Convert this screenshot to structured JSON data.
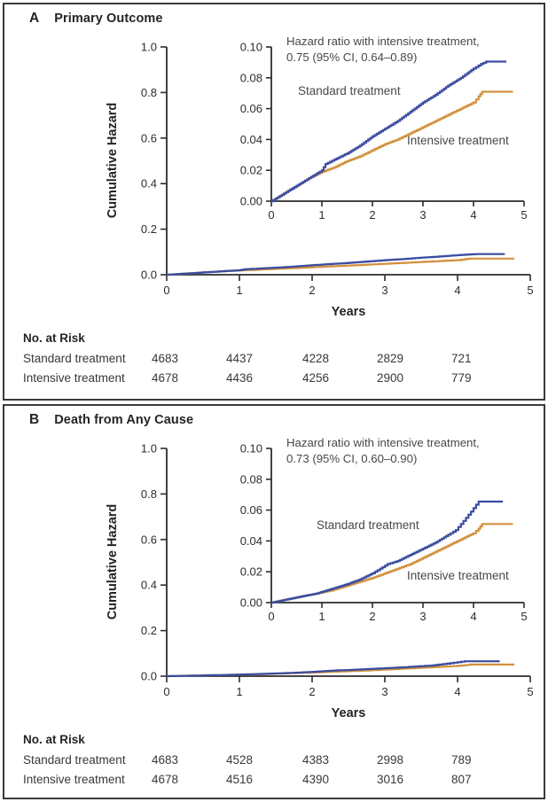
{
  "figure": {
    "panels": [
      {
        "letter": "A",
        "title": "Primary Outcome",
        "risk_table": {
          "header": "No. at Risk",
          "rows": [
            {
              "label": "Standard treatment",
              "values": [
                "4683",
                "4437",
                "4228",
                "2829",
                "721"
              ]
            },
            {
              "label": "Intensive treatment",
              "values": [
                "4678",
                "4436",
                "4256",
                "2900",
                "779"
              ]
            }
          ]
        }
      },
      {
        "letter": "B",
        "title": "Death from Any Cause",
        "risk_table": {
          "header": "No. at Risk",
          "rows": [
            {
              "label": "Standard treatment",
              "values": [
                "4683",
                "4528",
                "4383",
                "2998",
                "789"
              ]
            },
            {
              "label": "Intensive treatment",
              "values": [
                "4678",
                "4516",
                "4390",
                "3016",
                "807"
              ]
            }
          ]
        }
      }
    ]
  },
  "colors": {
    "standard_treatment": "#3A4C9F",
    "intensive_treatment": "#D2913E",
    "axis": "#2d2d2f",
    "tick_text": "#2d2d2f"
  },
  "chart_data": [
    {
      "type": "line",
      "title": "Primary Outcome",
      "xlabel": "Years",
      "ylabel": "Cumulative Hazard",
      "xlim": [
        0,
        5
      ],
      "xticks": [
        "0",
        "1",
        "2",
        "3",
        "4",
        "5"
      ],
      "main_ylim": [
        0,
        1.0
      ],
      "main_yticks": [
        "0.0",
        "0.2",
        "0.4",
        "0.6",
        "0.8",
        "1.0"
      ],
      "inset_ylim": [
        0,
        0.1
      ],
      "inset_yticks": [
        "0.00",
        "0.02",
        "0.04",
        "0.06",
        "0.08",
        "0.10"
      ],
      "grid": false,
      "legend": "inline-labels",
      "annotation": "Hazard ratio with intensive treatment, 0.75 (95% CI, 0.64–0.89)",
      "annotation_lines": [
        "Hazard ratio with intensive treatment,",
        "0.75 (95% CI, 0.64–0.89)"
      ],
      "series": [
        {
          "name": "Standard treatment",
          "color": "#3A4C9F",
          "points": [
            [
              0,
              0
            ],
            [
              0.25,
              0.005
            ],
            [
              0.5,
              0.01
            ],
            [
              0.75,
              0.015
            ],
            [
              1.0,
              0.02
            ],
            [
              1.07,
              0.024
            ],
            [
              1.25,
              0.027
            ],
            [
              1.5,
              0.031
            ],
            [
              1.75,
              0.036
            ],
            [
              2.0,
              0.042
            ],
            [
              2.25,
              0.047
            ],
            [
              2.5,
              0.052
            ],
            [
              2.75,
              0.058
            ],
            [
              3.0,
              0.064
            ],
            [
              3.25,
              0.069
            ],
            [
              3.5,
              0.075
            ],
            [
              3.75,
              0.08
            ],
            [
              4.0,
              0.086
            ],
            [
              4.15,
              0.089
            ],
            [
              4.25,
              0.0905
            ],
            [
              4.65,
              0.0905
            ]
          ]
        },
        {
          "name": "Intensive treatment",
          "color": "#D2913E",
          "points": [
            [
              0,
              0
            ],
            [
              0.25,
              0.005
            ],
            [
              0.5,
              0.01
            ],
            [
              0.75,
              0.015
            ],
            [
              1.0,
              0.019
            ],
            [
              1.25,
              0.022
            ],
            [
              1.5,
              0.026
            ],
            [
              1.75,
              0.029
            ],
            [
              2.0,
              0.033
            ],
            [
              2.25,
              0.037
            ],
            [
              2.5,
              0.04
            ],
            [
              2.75,
              0.044
            ],
            [
              3.0,
              0.048
            ],
            [
              3.25,
              0.052
            ],
            [
              3.5,
              0.056
            ],
            [
              3.75,
              0.06
            ],
            [
              4.0,
              0.064
            ],
            [
              4.1,
              0.068
            ],
            [
              4.17,
              0.071
            ],
            [
              4.78,
              0.071
            ]
          ]
        }
      ]
    },
    {
      "type": "line",
      "title": "Death from Any Cause",
      "xlabel": "Years",
      "ylabel": "Cumulative Hazard",
      "xlim": [
        0,
        5
      ],
      "xticks": [
        "0",
        "1",
        "2",
        "3",
        "4",
        "5"
      ],
      "main_ylim": [
        0,
        1.0
      ],
      "main_yticks": [
        "0.0",
        "0.2",
        "0.4",
        "0.6",
        "0.8",
        "1.0"
      ],
      "inset_ylim": [
        0,
        0.1
      ],
      "inset_yticks": [
        "0.00",
        "0.02",
        "0.04",
        "0.06",
        "0.08",
        "0.10"
      ],
      "grid": false,
      "legend": "inline-labels",
      "annotation": "Hazard ratio with intensive treatment, 0.73 (95% CI, 0.60–0.90)",
      "annotation_lines": [
        "Hazard ratio with intensive treatment,",
        "0.73 (95% CI, 0.60–0.90)"
      ],
      "series": [
        {
          "name": "Standard treatment",
          "color": "#3A4C9F",
          "points": [
            [
              0,
              0
            ],
            [
              0.3,
              0.002
            ],
            [
              0.6,
              0.004
            ],
            [
              0.9,
              0.006
            ],
            [
              1.2,
              0.009
            ],
            [
              1.5,
              0.012
            ],
            [
              1.75,
              0.015
            ],
            [
              2.0,
              0.019
            ],
            [
              2.15,
              0.022
            ],
            [
              2.3,
              0.025
            ],
            [
              2.5,
              0.027
            ],
            [
              2.75,
              0.031
            ],
            [
              3.0,
              0.035
            ],
            [
              3.25,
              0.039
            ],
            [
              3.5,
              0.044
            ],
            [
              3.65,
              0.047
            ],
            [
              3.8,
              0.053
            ],
            [
              3.95,
              0.059
            ],
            [
              4.05,
              0.0635
            ],
            [
              4.1,
              0.0655
            ],
            [
              4.58,
              0.0655
            ]
          ]
        },
        {
          "name": "Intensive treatment",
          "color": "#D2913E",
          "points": [
            [
              0,
              0
            ],
            [
              0.3,
              0.002
            ],
            [
              0.6,
              0.004
            ],
            [
              0.9,
              0.006
            ],
            [
              1.2,
              0.008
            ],
            [
              1.5,
              0.011
            ],
            [
              1.75,
              0.0135
            ],
            [
              2.0,
              0.016
            ],
            [
              2.25,
              0.019
            ],
            [
              2.5,
              0.022
            ],
            [
              2.75,
              0.025
            ],
            [
              3.0,
              0.029
            ],
            [
              3.25,
              0.033
            ],
            [
              3.5,
              0.037
            ],
            [
              3.75,
              0.041
            ],
            [
              4.0,
              0.045
            ],
            [
              4.1,
              0.048
            ],
            [
              4.17,
              0.051
            ],
            [
              4.78,
              0.051
            ]
          ]
        }
      ]
    }
  ]
}
